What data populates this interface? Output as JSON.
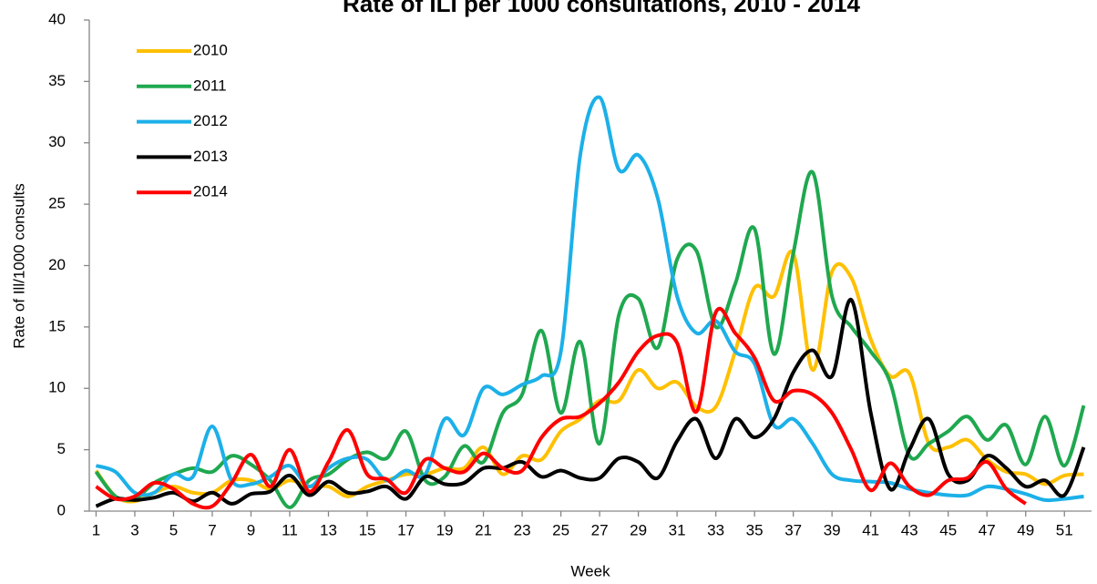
{
  "chart_data": {
    "type": "line",
    "title": "Rate of ILI per 1000 consultations, 2010 - 2014",
    "xlabel": "Week",
    "ylabel": "Rate of Ill/1000 consults",
    "x": [
      1,
      2,
      3,
      4,
      5,
      6,
      7,
      8,
      9,
      10,
      11,
      12,
      13,
      14,
      15,
      16,
      17,
      18,
      19,
      20,
      21,
      22,
      23,
      24,
      25,
      26,
      27,
      28,
      29,
      30,
      31,
      32,
      33,
      34,
      35,
      36,
      37,
      38,
      39,
      40,
      41,
      42,
      43,
      44,
      45,
      46,
      47,
      48,
      49,
      50,
      51,
      52
    ],
    "xlim": [
      0.65,
      52.4
    ],
    "xticks": [
      1,
      3,
      5,
      7,
      9,
      11,
      13,
      15,
      17,
      19,
      21,
      23,
      25,
      27,
      29,
      31,
      33,
      35,
      37,
      39,
      41,
      43,
      45,
      47,
      49,
      51
    ],
    "ylim": [
      0,
      40
    ],
    "yticks": [
      0,
      5,
      10,
      15,
      20,
      25,
      30,
      35,
      40
    ],
    "grid": false,
    "legend": "upper left",
    "series": [
      {
        "name": "2010",
        "color": "#ffc000",
        "values": [
          3.3,
          1.2,
          0.8,
          1.5,
          2,
          1.5,
          1.5,
          2.5,
          2.5,
          1.8,
          2.5,
          2,
          2,
          1.2,
          2,
          2.5,
          3,
          3,
          3.5,
          3.5,
          5.2,
          3,
          4.5,
          4.2,
          6.5,
          7.5,
          9,
          9,
          11.5,
          10,
          10.5,
          8.5,
          8.5,
          13,
          18.2,
          17.5,
          21,
          11.5,
          19.5,
          19,
          14,
          11,
          11.2,
          5.5,
          5.2,
          5.8,
          4.2,
          3.2,
          3,
          2.2,
          2.9,
          3
        ]
      },
      {
        "name": "2011",
        "color": "#1fa84f",
        "values": [
          3.2,
          1.2,
          1,
          2.3,
          3,
          3.5,
          3.2,
          4.5,
          3.8,
          2.5,
          0.3,
          2.5,
          3,
          4.2,
          4.8,
          4.3,
          6.5,
          2.5,
          2.8,
          5.3,
          4,
          8,
          9.5,
          14.7,
          8,
          13.8,
          5.5,
          16,
          17.3,
          13.3,
          20.5,
          21.2,
          15,
          18.5,
          23,
          12.8,
          21,
          27.6,
          17.5,
          15,
          13,
          10.5,
          4.5,
          5.5,
          6.5,
          7.7,
          5.8,
          7,
          3.8,
          7.7,
          3.7,
          8.6
        ]
      },
      {
        "name": "2012",
        "color": "#1cb0e8",
        "values": [
          3.7,
          3.2,
          1.5,
          1.5,
          3,
          2.8,
          6.9,
          2.5,
          2.2,
          2.8,
          3.7,
          2,
          3.5,
          4.3,
          4.2,
          2.5,
          3.3,
          3,
          7.5,
          6.2,
          10,
          9.5,
          10.3,
          11,
          13,
          29,
          33.7,
          27.8,
          29,
          25.5,
          17.5,
          14.5,
          15.5,
          13,
          12,
          7,
          7.5,
          5.5,
          3,
          2.5,
          2.4,
          2.3,
          1.8,
          1.5,
          1.3,
          1.3,
          2,
          1.8,
          1.4,
          0.9,
          1,
          1.2
        ]
      },
      {
        "name": "2013",
        "color": "#000000",
        "values": [
          0.4,
          1,
          0.9,
          1.1,
          1.5,
          0.8,
          1.5,
          0.6,
          1.4,
          1.6,
          2.9,
          1.3,
          2.4,
          1.5,
          1.6,
          2,
          1,
          2.8,
          2.2,
          2.3,
          3.5,
          3.5,
          4,
          2.8,
          3.3,
          2.7,
          2.7,
          4.3,
          4,
          2.7,
          5.7,
          7.5,
          4.3,
          7.5,
          6,
          7.5,
          11.3,
          13.1,
          11,
          17.2,
          8,
          1.8,
          5,
          7.5,
          3,
          2.5,
          4.5,
          3.5,
          2,
          2.5,
          1.3,
          5.2
        ]
      },
      {
        "name": "2014",
        "color": "#ff0000",
        "values": [
          2,
          1,
          1.2,
          2.3,
          1.8,
          0.6,
          0.4,
          2.3,
          4.6,
          2,
          5,
          1.6,
          4,
          6.6,
          3,
          2.6,
          1.5,
          4.2,
          3.5,
          3.2,
          4.7,
          3.5,
          3.3,
          6,
          7.5,
          7.7,
          8.8,
          10.5,
          13,
          14.3,
          13.7,
          8.1,
          16.2,
          14.5,
          12.5,
          9,
          9.8,
          9.5,
          8,
          5,
          1.7,
          3.9,
          2,
          1.3,
          2.5,
          2.7,
          4,
          1.8,
          0.6,
          null,
          null,
          null
        ]
      }
    ]
  }
}
